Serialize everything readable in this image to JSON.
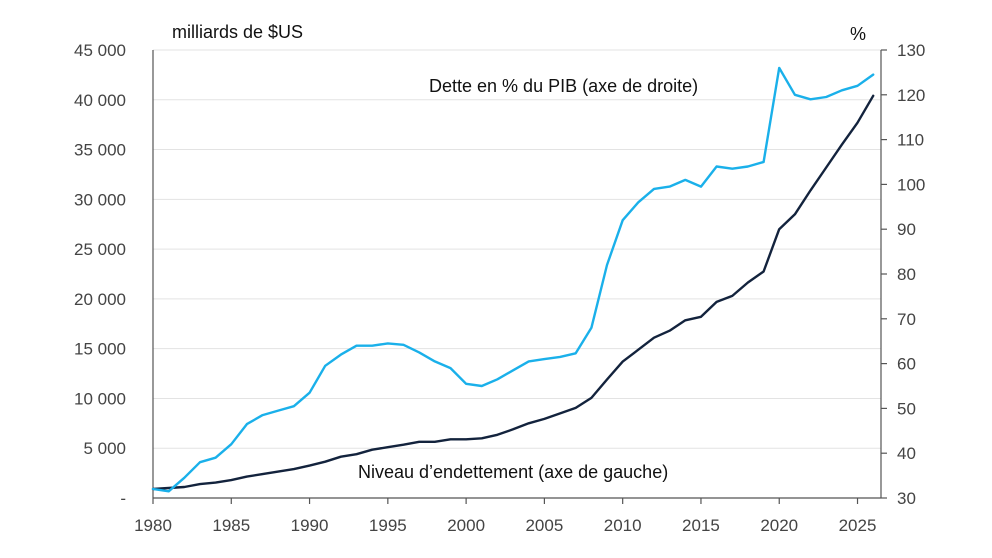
{
  "chart_data": {
    "type": "line",
    "title": "",
    "left_axis": {
      "label": "milliards de $US",
      "ticks": [
        0,
        5000,
        10000,
        15000,
        20000,
        25000,
        30000,
        35000,
        40000,
        45000
      ],
      "tick_labels": [
        "-",
        "5 000",
        "10 000",
        "15 000",
        "20 000",
        "25 000",
        "30 000",
        "35 000",
        "40 000",
        "45 000"
      ],
      "ylim": [
        0,
        45000
      ]
    },
    "right_axis": {
      "label": "%",
      "ticks": [
        30,
        40,
        50,
        60,
        70,
        80,
        90,
        100,
        110,
        120,
        130
      ],
      "tick_labels": [
        "30",
        "40",
        "50",
        "60",
        "70",
        "80",
        "90",
        "100",
        "110",
        "120",
        "130"
      ],
      "ylim": [
        30,
        130
      ]
    },
    "x_axis": {
      "ticks": [
        1980,
        1985,
        1990,
        1995,
        2000,
        2005,
        2010,
        2015,
        2020,
        2025
      ],
      "tick_labels": [
        "1980",
        "1985",
        "1990",
        "1995",
        "2000",
        "2005",
        "2010",
        "2015",
        "2020",
        "2025"
      ],
      "xlim": [
        1980,
        2026.5
      ]
    },
    "grid": true,
    "x": [
      1980,
      1981,
      1982,
      1983,
      1984,
      1985,
      1986,
      1987,
      1988,
      1989,
      1990,
      1991,
      1992,
      1993,
      1994,
      1995,
      1996,
      1997,
      1998,
      1999,
      2000,
      2001,
      2002,
      2003,
      2004,
      2005,
      2006,
      2007,
      2008,
      2009,
      2010,
      2011,
      2012,
      2013,
      2014,
      2015,
      2016,
      2017,
      2018,
      2019,
      2020,
      2021,
      2022,
      2023,
      2024,
      2025,
      2026
    ],
    "series": [
      {
        "name": "Niveau d’endettement (axe de gauche)",
        "axis": "left",
        "color": "#13233d",
        "values": [
          900,
          1000,
          1100,
          1400,
          1550,
          1800,
          2150,
          2400,
          2650,
          2900,
          3250,
          3650,
          4150,
          4400,
          4850,
          5100,
          5350,
          5650,
          5650,
          5900,
          5900,
          6000,
          6350,
          6900,
          7500,
          7950,
          8500,
          9050,
          10050,
          11900,
          13700,
          14900,
          16100,
          16800,
          17850,
          18200,
          19700,
          20300,
          21650,
          22750,
          27000,
          28500,
          30900,
          33200,
          35500,
          37700,
          40400
        ]
      },
      {
        "name": "Dette en % du PIB (axe de droite)",
        "axis": "right",
        "color": "#1ab0ea",
        "values": [
          32,
          31.5,
          34.5,
          38,
          39,
          42,
          46.5,
          48.5,
          49.5,
          50.5,
          53.5,
          59.5,
          62,
          64,
          64,
          64.5,
          64.2,
          62.5,
          60.5,
          59,
          55.5,
          55,
          56.5,
          58.5,
          60.5,
          61,
          61.5,
          62.3,
          68,
          82,
          92,
          96,
          99,
          99.5,
          101,
          99.5,
          104,
          103.5,
          104,
          105,
          126,
          120,
          119,
          119.5,
          121,
          122,
          124.5
        ]
      }
    ],
    "annotations": {
      "right_series_label": "Dette en % du PIB (axe de droite)",
      "left_series_label": "Niveau d’endettement (axe de gauche)"
    }
  }
}
